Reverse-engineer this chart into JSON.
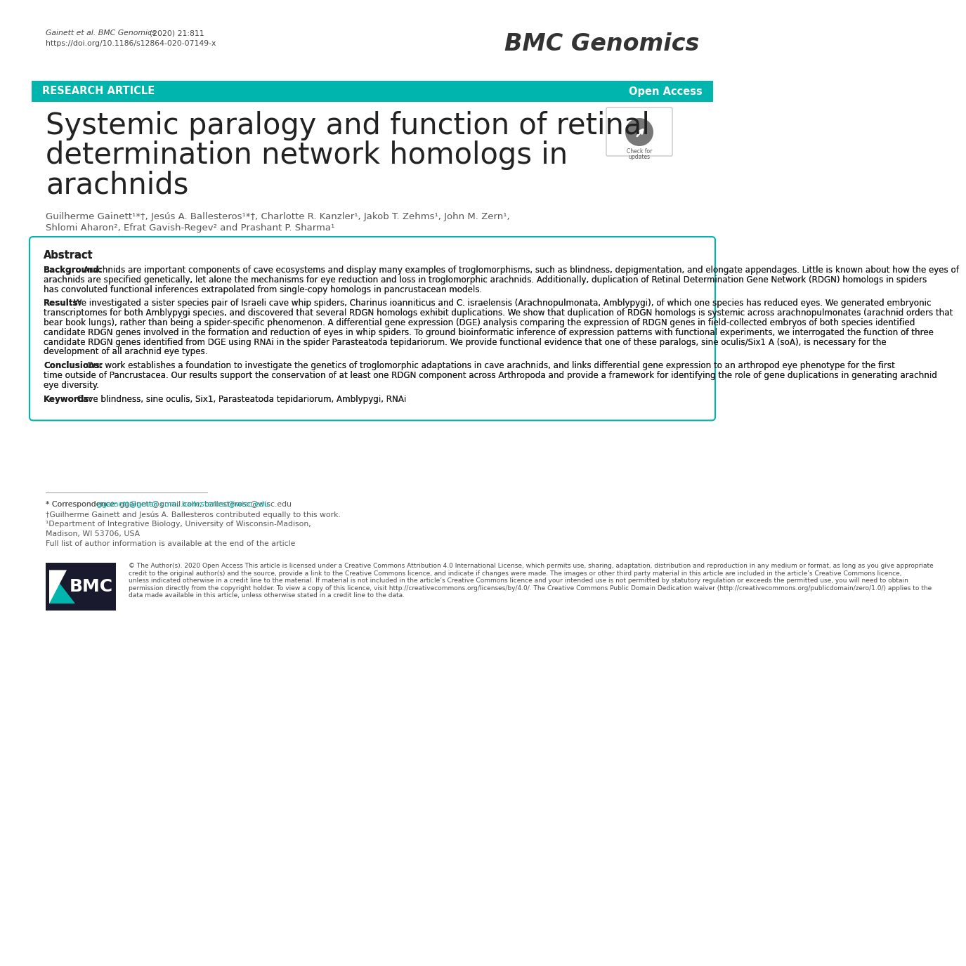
{
  "bg_color": "#ffffff",
  "teal_color": "#00B5AD",
  "header_left1": "Gainett et al. BMC Genomics",
  "header_left1b": "(2020) 21:811",
  "header_left2": "https://doi.org/10.1186/s12864-020-07149-x",
  "journal_name": "BMC Genomics",
  "banner_text_left": "RESEARCH ARTICLE",
  "banner_text_right": "Open Access",
  "title_line1": "Systemic paralogy and function of retinal",
  "title_line2": "determination network homologs in",
  "title_line3": "arachnids",
  "authors_line1": "Guilherme Gainett¹*†, Jesús A. Ballesteros¹*†, Charlotte R. Kanzler¹, Jakob T. Zehms¹, John M. Zern¹,",
  "authors_line2": "Shlomi Aharon², Efrat Gavish-Regev² and Prashant P. Sharma¹",
  "abstract_label": "Abstract",
  "background_label": "Background:",
  "background_text": "Arachnids are important components of cave ecosystems and display many examples of troglomorphisms, such as blindness, depigmentation, and elongate appendages. Little is known about how the eyes of arachnids are specified genetically, let alone the mechanisms for eye reduction and loss in troglomorphic arachnids. Additionally, duplication of Retinal Determination Gene Network (RDGN) homologs in spiders has convoluted functional inferences extrapolated from single-copy homologs in pancrustacean models.",
  "results_label": "Results:",
  "results_text": "We investigated a sister species pair of Israeli cave whip spiders, Charinus ioanniticus and C. israelensis (Arachnopulmonata, Amblypygi), of which one species has reduced eyes. We generated embryonic transcriptomes for both Amblypygi species, and discovered that several RDGN homologs exhibit duplications. We show that duplication of RDGN homologs is systemic across arachnopulmonates (arachnid orders that bear book lungs), rather than being a spider-specific phenomenon. A differential gene expression (DGE) analysis comparing the expression of RDGN genes in field-collected embryos of both species identified candidate RDGN genes involved in the formation and reduction of eyes in whip spiders. To ground bioinformatic inference of expression patterns with functional experiments, we interrogated the function of three candidate RDGN genes identified from DGE using RNAi in the spider Parasteatoda tepidariorum. We provide functional evidence that one of these paralogs, sine oculis/Six1 A (soA), is necessary for the development of all arachnid eye types.",
  "conclusions_label": "Conclusions:",
  "conclusions_text": "Our work establishes a foundation to investigate the genetics of troglomorphic adaptations in cave arachnids, and links differential gene expression to an arthropod eye phenotype for the first time outside of Pancrustacea. Our results support the conservation of at least one RDGN component across Arthropoda and provide a framework for identifying the role of gene duplications in generating arachnid eye diversity.",
  "keywords_label": "Keywords:",
  "keywords_text": "Cave blindness, sine oculis, Six1, Parasteatoda tepidariorum, Amblypygi, RNAi",
  "footnote_line1": "* Correspondence: ggainett@gmail.com; ballesterosc@wisc.edu",
  "footnote_line2": "†Guilherme Gainett and Jesús A. Ballesteros contributed equally to this work.",
  "footnote_line3": "¹Department of Integrative Biology, University of Wisconsin-Madison,",
  "footnote_line4": "Madison, WI 53706, USA",
  "footnote_line5": "Full list of author information is available at the end of the article",
  "footer_text_before_bold": "© The Author(s). 2020 ",
  "footer_bold": "Open Access",
  "footer_text_after_bold": " This article is licensed under a Creative Commons Attribution 4.0 International License, which permits use, sharing, adaptation, distribution and reproduction in any medium or format, as long as you give appropriate credit to the original author(s) and the source, provide a link to the Creative Commons licence, and indicate if changes were made. The images or other third party material in this article are included in the article’s Creative Commons licence, unless indicated otherwise in a credit line to the material. If material is not included in the article’s Creative Commons licence and your intended use is not permitted by statutory regulation or exceeds the permitted use, you will need to obtain permission directly from the copyright holder. To view a copy of this licence, visit http://creativecommons.org/licenses/by/4.0/. The Creative Commons Public Domain Dedication waiver (http://creativecommons.org/publicdomain/zero/1.0/) applies to the data made available in this article, unless otherwise stated in a credit line to the data."
}
